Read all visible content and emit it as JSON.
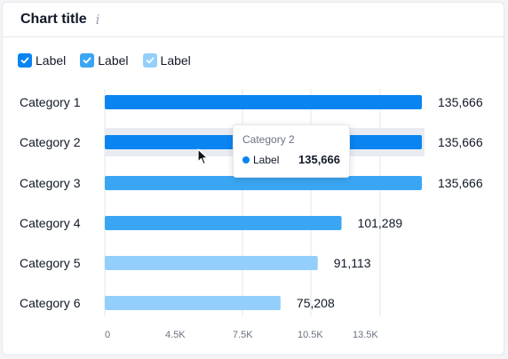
{
  "header": {
    "title": "Chart title",
    "info_icon": "info-icon"
  },
  "legend": {
    "items": [
      {
        "label": "Label",
        "checked": true,
        "color": "#0a84f0"
      },
      {
        "label": "Label",
        "checked": true,
        "color": "#3aa6f3"
      },
      {
        "label": "Label",
        "checked": true,
        "color": "#93cffa"
      }
    ]
  },
  "tooltip": {
    "title": "Category 2",
    "series_label": "Label",
    "value": "135,666",
    "dot_color": "#0a84f0"
  },
  "chart_data": {
    "type": "bar",
    "orientation": "horizontal",
    "categories": [
      "Category 1",
      "Category 2",
      "Category 3",
      "Category 4",
      "Category 5",
      "Category 6"
    ],
    "values": [
      135666,
      135666,
      135666,
      101289,
      91113,
      75208
    ],
    "value_labels": [
      "135,666",
      "135,666",
      "135,666",
      "101,289",
      "91,113",
      "75,208"
    ],
    "bar_colors": [
      "#0a84f0",
      "#0a84f0",
      "#3aa6f3",
      "#3aa6f3",
      "#93cffa",
      "#93cffa"
    ],
    "highlighted_index": 1,
    "x_ticks": [
      {
        "value": 0,
        "label": "0"
      },
      {
        "value": 4500,
        "label": "4.5K"
      },
      {
        "value": 7500,
        "label": "7.5K"
      },
      {
        "value": 10500,
        "label": "10.5K"
      },
      {
        "value": 13500,
        "label": "13.5K"
      }
    ],
    "grid": true
  }
}
